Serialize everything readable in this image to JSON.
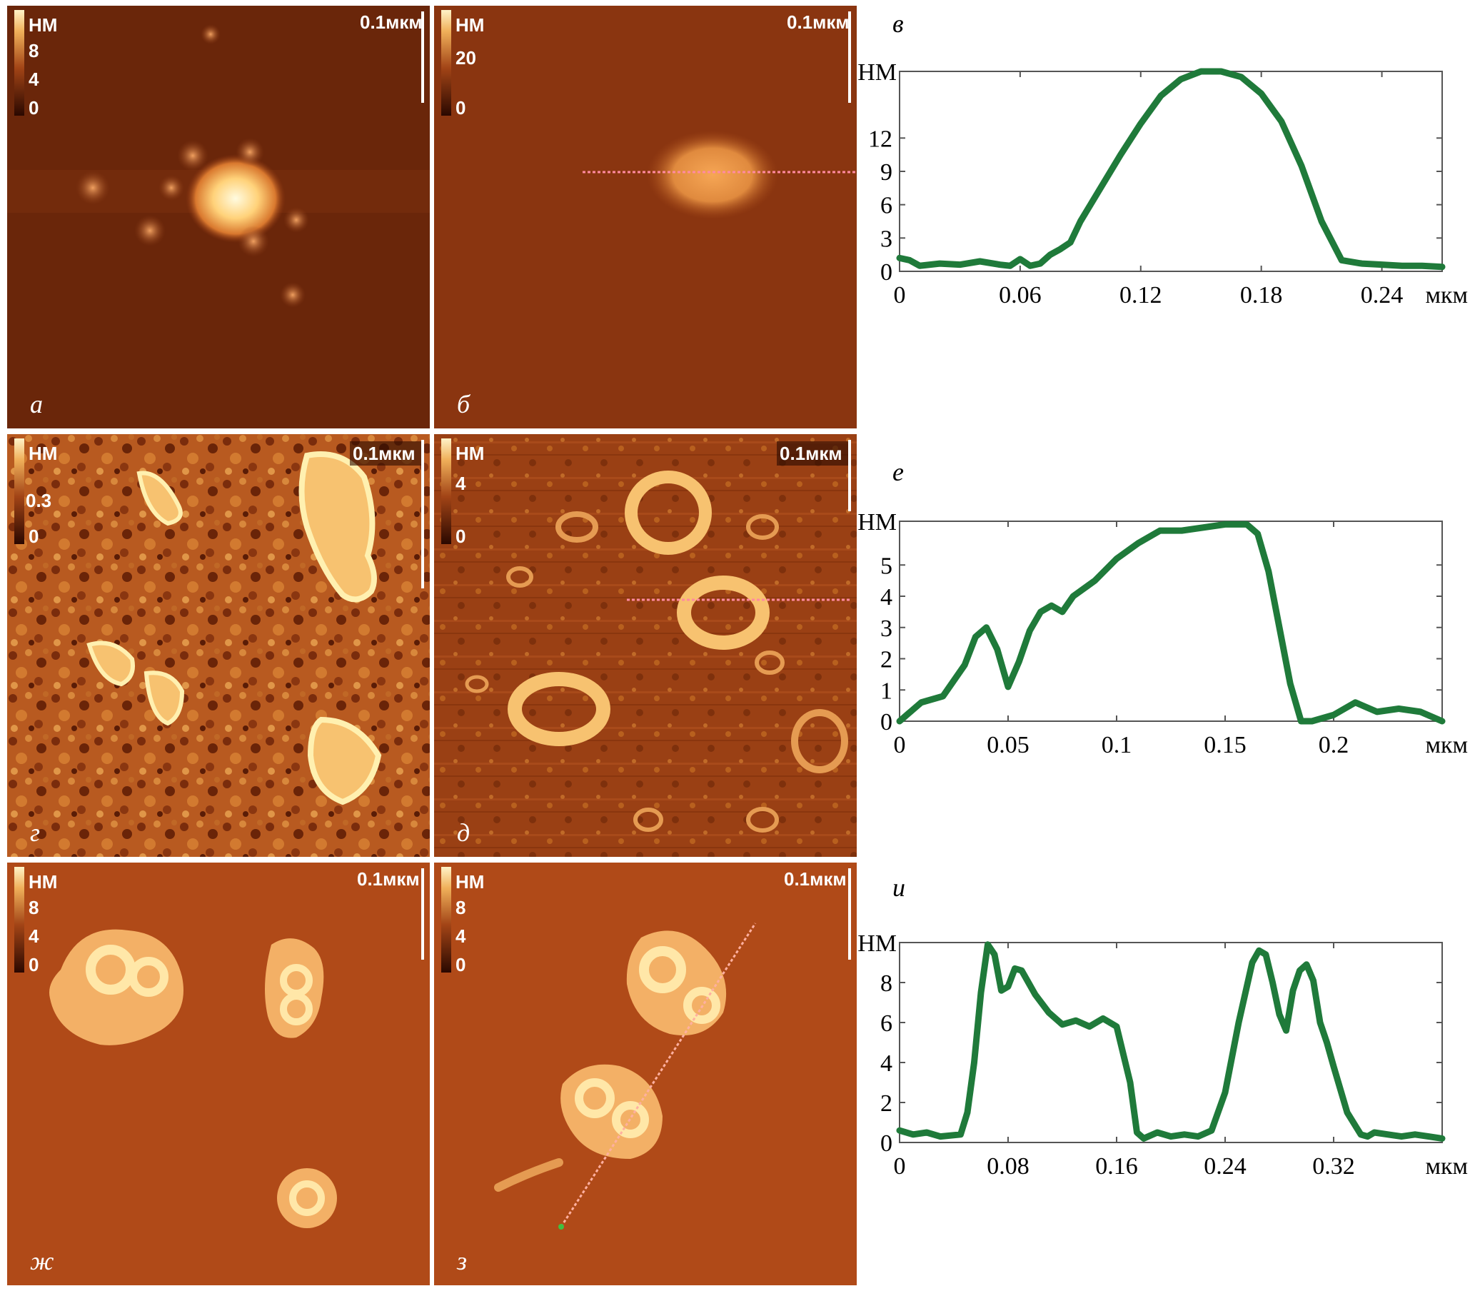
{
  "panels": [
    {
      "id": "a",
      "letter": "а",
      "unit": "НМ",
      "scale_ticks": [
        "8",
        "4",
        "0"
      ],
      "scalebar": "0.1мкм"
    },
    {
      "id": "b",
      "letter": "б",
      "unit": "НМ",
      "scale_ticks": [
        "20",
        "0"
      ],
      "scalebar": "0.1мкм"
    },
    {
      "id": "g",
      "letter": "г",
      "unit": "НМ",
      "scale_ticks": [
        "0.3",
        "0"
      ],
      "scalebar": "0.1мкм"
    },
    {
      "id": "d",
      "letter": "д",
      "unit": "НМ",
      "scale_ticks": [
        "4",
        "0"
      ],
      "scalebar": "0.1мкм"
    },
    {
      "id": "zh",
      "letter": "ж",
      "unit": "НМ",
      "scale_ticks": [
        "8",
        "4",
        "0"
      ],
      "scalebar": "0.1мкм"
    },
    {
      "id": "z",
      "letter": "з",
      "unit": "НМ",
      "scale_ticks": [
        "8",
        "4",
        "0"
      ],
      "scalebar": "0.1мкм"
    }
  ],
  "colors": {
    "line": "#1f7a3a",
    "afm_dark": "#5a1e08",
    "afm_mid": "#a8451c",
    "afm_bright": "#ffe7a8"
  },
  "chart_data": [
    {
      "type": "line",
      "letter": "в",
      "ylabel": "НМ",
      "xlabel": "мкм",
      "xlim": [
        0,
        0.27
      ],
      "ylim": [
        0,
        18
      ],
      "x_ticks": [
        "0",
        "0.06",
        "0.12",
        "0.18",
        "0.24"
      ],
      "x_tick_values": [
        0,
        0.06,
        0.12,
        0.18,
        0.24
      ],
      "y_ticks": [
        "0",
        "3",
        "6",
        "9",
        "12"
      ],
      "y_tick_values": [
        0,
        3,
        6,
        9,
        12
      ],
      "series": [
        {
          "x": [
            0,
            0.005,
            0.01,
            0.02,
            0.03,
            0.04,
            0.05,
            0.055,
            0.06,
            0.065,
            0.07,
            0.075,
            0.08,
            0.085,
            0.09,
            0.1,
            0.11,
            0.12,
            0.13,
            0.14,
            0.15,
            0.16,
            0.17,
            0.18,
            0.19,
            0.2,
            0.21,
            0.22,
            0.23,
            0.24,
            0.25,
            0.26,
            0.27
          ],
          "y": [
            1.2,
            1.0,
            0.5,
            0.7,
            0.6,
            0.9,
            0.6,
            0.5,
            1.1,
            0.5,
            0.7,
            1.5,
            2.0,
            2.6,
            4.5,
            7.5,
            10.5,
            13.3,
            15.8,
            17.3,
            18,
            18,
            17.5,
            16,
            13.5,
            9.5,
            4.5,
            1.0,
            0.7,
            0.6,
            0.5,
            0.5,
            0.4
          ]
        }
      ]
    },
    {
      "type": "line",
      "letter": "е",
      "ylabel": "НМ",
      "xlabel": "мкм",
      "xlim": [
        0,
        0.25
      ],
      "ylim": [
        0,
        6.4
      ],
      "x_ticks": [
        "0",
        "0.05",
        "0.1",
        "0.15",
        "0.2"
      ],
      "x_tick_values": [
        0,
        0.05,
        0.1,
        0.15,
        0.2
      ],
      "y_ticks": [
        "0",
        "1",
        "2",
        "3",
        "4",
        "5"
      ],
      "y_tick_values": [
        0,
        1,
        2,
        3,
        4,
        5
      ],
      "series": [
        {
          "x": [
            0,
            0.005,
            0.01,
            0.02,
            0.03,
            0.035,
            0.04,
            0.045,
            0.05,
            0.055,
            0.06,
            0.065,
            0.07,
            0.075,
            0.08,
            0.09,
            0.1,
            0.11,
            0.12,
            0.13,
            0.14,
            0.15,
            0.16,
            0.165,
            0.17,
            0.175,
            0.18,
            0.185,
            0.19,
            0.2,
            0.21,
            0.22,
            0.23,
            0.24,
            0.25
          ],
          "y": [
            0,
            0.3,
            0.6,
            0.8,
            1.8,
            2.7,
            3.0,
            2.3,
            1.1,
            1.9,
            2.9,
            3.5,
            3.7,
            3.5,
            4.0,
            4.5,
            5.2,
            5.7,
            6.1,
            6.1,
            6.2,
            6.3,
            6.3,
            6.0,
            4.8,
            3.0,
            1.2,
            0,
            0,
            0.2,
            0.6,
            0.3,
            0.4,
            0.3,
            0
          ]
        }
      ]
    },
    {
      "type": "line",
      "letter": "и",
      "ylabel": "НМ",
      "xlabel": "мкм",
      "xlim": [
        0,
        0.4
      ],
      "ylim": [
        0,
        10
      ],
      "x_ticks": [
        "0",
        "0.08",
        "0.16",
        "0.24",
        "0.32"
      ],
      "x_tick_values": [
        0,
        0.08,
        0.16,
        0.24,
        0.32
      ],
      "y_ticks": [
        "0",
        "2",
        "4",
        "6",
        "8"
      ],
      "y_tick_values": [
        0,
        2,
        4,
        6,
        8
      ],
      "series": [
        {
          "x": [
            0,
            0.01,
            0.02,
            0.03,
            0.045,
            0.05,
            0.055,
            0.06,
            0.065,
            0.07,
            0.075,
            0.08,
            0.085,
            0.09,
            0.095,
            0.1,
            0.11,
            0.12,
            0.13,
            0.14,
            0.15,
            0.16,
            0.17,
            0.175,
            0.18,
            0.19,
            0.2,
            0.21,
            0.22,
            0.23,
            0.24,
            0.25,
            0.26,
            0.265,
            0.27,
            0.275,
            0.28,
            0.285,
            0.29,
            0.295,
            0.3,
            0.305,
            0.31,
            0.315,
            0.32,
            0.33,
            0.34,
            0.345,
            0.35,
            0.36,
            0.37,
            0.38,
            0.39,
            0.4
          ],
          "y": [
            0.6,
            0.4,
            0.5,
            0.3,
            0.4,
            1.5,
            4.0,
            7.5,
            9.9,
            9.4,
            7.6,
            7.8,
            8.7,
            8.6,
            8.0,
            7.4,
            6.5,
            5.9,
            6.1,
            5.8,
            6.2,
            5.8,
            3.0,
            0.5,
            0.2,
            0.5,
            0.3,
            0.4,
            0.3,
            0.6,
            2.5,
            6.0,
            9.0,
            9.6,
            9.4,
            8.0,
            6.4,
            5.6,
            7.6,
            8.6,
            8.9,
            8.1,
            6.0,
            5.0,
            3.8,
            1.5,
            0.4,
            0.3,
            0.5,
            0.4,
            0.3,
            0.4,
            0.3,
            0.2
          ]
        }
      ]
    }
  ]
}
